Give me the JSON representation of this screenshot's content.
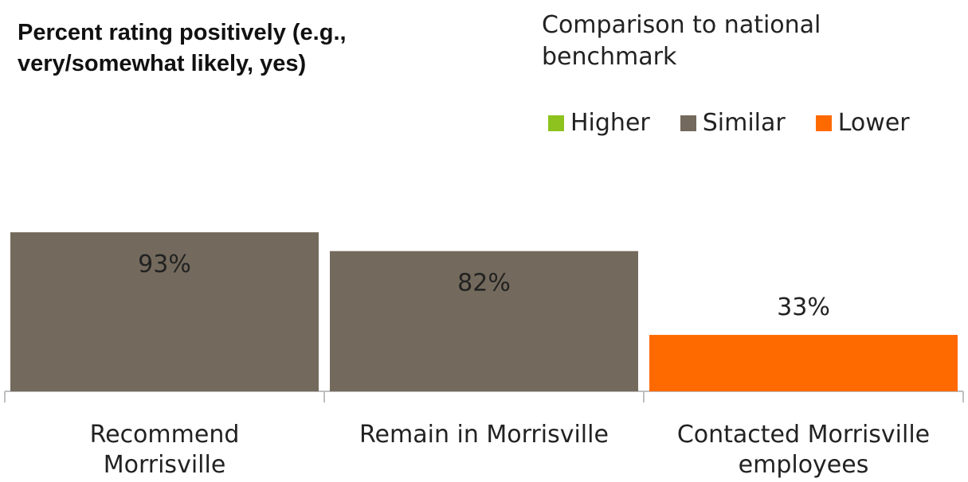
{
  "chart_data": {
    "type": "bar",
    "title": "Percent rating positively (e.g., very/somewhat likely, yes)",
    "categories": [
      [
        "Recommend",
        "Morrisville"
      ],
      [
        "Remain in Morrisville"
      ],
      [
        "Contacted Morrisville",
        "employees"
      ]
    ],
    "values": [
      93,
      82,
      33
    ],
    "value_labels": [
      "93%",
      "82%",
      "33%"
    ],
    "comparison": [
      "Similar",
      "Similar",
      "Lower"
    ],
    "ylim": [
      0,
      100
    ],
    "grid": false,
    "legend": {
      "title": "Comparison to national benchmark",
      "placement": "top-right",
      "items": [
        {
          "label": "Higher",
          "color": "#8dc21f"
        },
        {
          "label": "Similar",
          "color": "#736a5d"
        },
        {
          "label": "Lower",
          "color": "#ff6a00"
        }
      ]
    }
  }
}
